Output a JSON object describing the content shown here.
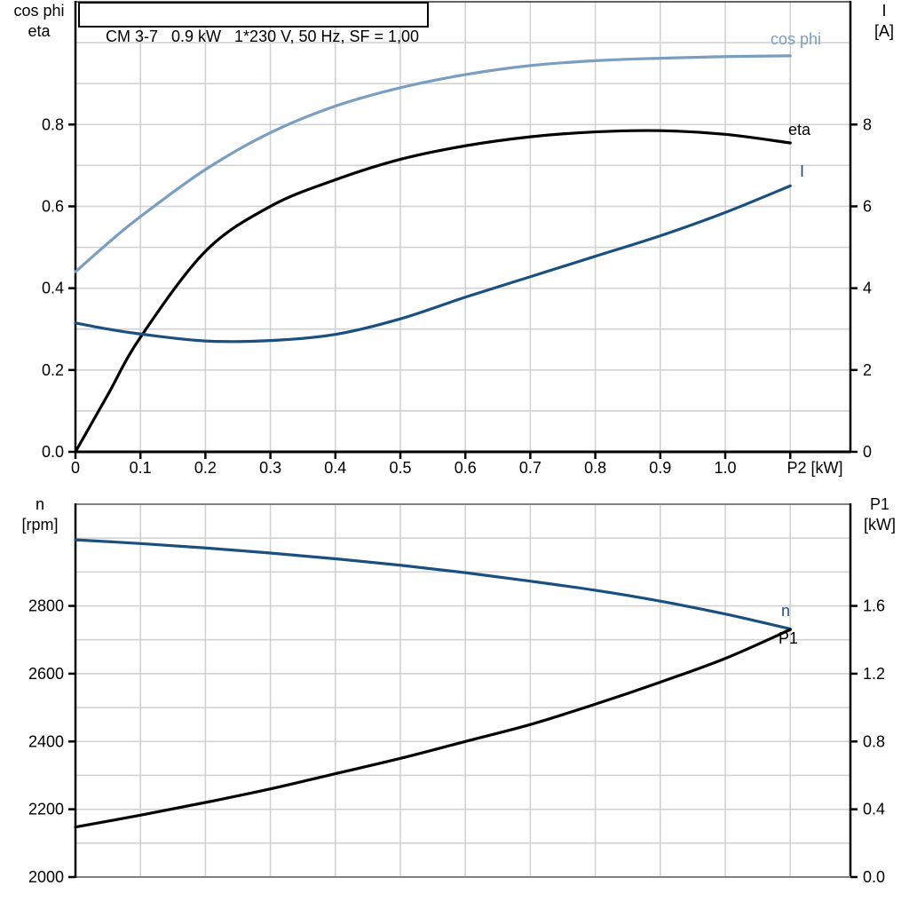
{
  "title_box": "CM 3-7   0.9 kW   1*230 V, 50 Hz, SF = 1,00",
  "axis_corner_labels": {
    "top_left": [
      "cos phi",
      "eta"
    ],
    "top_right": [
      "I",
      "[A]"
    ],
    "bottom_left": [
      "n",
      "[rpm]"
    ],
    "bottom_right": [
      "P1",
      "[kW]"
    ]
  },
  "colors": {
    "cos_phi_blue": "#7A9EC2",
    "dark_blue": "#1A5080",
    "black": "#000000",
    "grid": "#D2D2D2",
    "frame_gray": "#808080"
  },
  "chart_data": [
    {
      "type": "line",
      "title": "CM 3-7   0.9 kW   1*230 V, 50 Hz, SF = 1,00",
      "xlabel": "P2 [kW]",
      "xlabel_v": 1.138,
      "ylabel_left": "cos phi / eta",
      "ylabel_right": "I [A]",
      "xlim": [
        0,
        1.1926
      ],
      "ylim_left": [
        0,
        1.1
      ],
      "ylim_right": [
        0,
        11.0
      ],
      "grid": true,
      "legend_position": "inline-curve-labels",
      "grid_x": [
        0.1,
        0.2,
        0.3,
        0.4,
        0.5,
        0.6,
        0.7,
        0.8,
        0.9,
        1.0,
        1.1
      ],
      "grid_y_left": [
        0.1,
        0.2,
        0.3,
        0.4,
        0.5,
        0.6,
        0.7,
        0.8,
        0.9,
        1.0
      ],
      "xticks": [
        {
          "v": 0,
          "l": "0"
        },
        {
          "v": 0.1,
          "l": "0.1"
        },
        {
          "v": 0.2,
          "l": "0.2"
        },
        {
          "v": 0.3,
          "l": "0.3"
        },
        {
          "v": 0.4,
          "l": "0.4"
        },
        {
          "v": 0.5,
          "l": "0.5"
        },
        {
          "v": 0.6,
          "l": "0.6"
        },
        {
          "v": 0.7,
          "l": "0.7"
        },
        {
          "v": 0.8,
          "l": "0.8"
        },
        {
          "v": 0.9,
          "l": "0.9"
        },
        {
          "v": 1.0,
          "l": "1.0"
        },
        {
          "v": 1.1,
          "l": ""
        }
      ],
      "yticks_left": [
        {
          "v": 0,
          "l": "0.0"
        },
        {
          "v": 0.2,
          "l": "0.2"
        },
        {
          "v": 0.4,
          "l": "0.4"
        },
        {
          "v": 0.6,
          "l": "0.6"
        },
        {
          "v": 0.8,
          "l": "0.8"
        }
      ],
      "yticks_right": [
        {
          "v": 0,
          "l": "0"
        },
        {
          "v": 2,
          "l": "2"
        },
        {
          "v": 4,
          "l": "4"
        },
        {
          "v": 6,
          "l": "6"
        },
        {
          "v": 8,
          "l": "8"
        }
      ],
      "x": [
        0,
        0.05,
        0.1,
        0.2,
        0.3,
        0.4,
        0.5,
        0.6,
        0.7,
        0.8,
        0.9,
        1.0,
        1.1
      ],
      "series": [
        {
          "id": "cos-phi",
          "name": "cos phi",
          "axis": "left",
          "color": "#7A9EC2",
          "values": [
            0.44,
            0.51,
            0.575,
            0.69,
            0.78,
            0.845,
            0.89,
            0.922,
            0.944,
            0.956,
            0.962,
            0.966,
            0.968
          ]
        },
        {
          "id": "eta",
          "name": "eta",
          "axis": "left",
          "color": "#000000",
          "values": [
            0,
            0.14,
            0.28,
            0.49,
            0.6,
            0.665,
            0.715,
            0.748,
            0.77,
            0.782,
            0.785,
            0.776,
            0.755
          ]
        },
        {
          "id": "current",
          "name": "I",
          "axis": "right",
          "color": "#1A5080",
          "values": [
            3.15,
            3.0,
            2.88,
            2.71,
            2.72,
            2.87,
            3.25,
            3.78,
            4.28,
            4.78,
            5.28,
            5.85,
            6.5
          ]
        }
      ]
    },
    {
      "type": "line",
      "xlabel": "",
      "ylabel_left": "n [rpm]",
      "ylabel_right": "P1 [kW]",
      "xlim": [
        0,
        1.1926
      ],
      "ylim_left": [
        2000,
        3100
      ],
      "ylim_right": [
        0,
        2.2
      ],
      "grid": true,
      "legend_position": "inline-curve-labels",
      "grid_x": [
        0.1,
        0.2,
        0.3,
        0.4,
        0.5,
        0.6,
        0.7,
        0.8,
        0.9,
        1.0,
        1.1
      ],
      "grid_y_left": [
        2100,
        2200,
        2300,
        2400,
        2500,
        2600,
        2700,
        2800,
        2900,
        3000
      ],
      "xticks": [],
      "yticks_left": [
        {
          "v": 2000,
          "l": "2000"
        },
        {
          "v": 2200,
          "l": "2200"
        },
        {
          "v": 2400,
          "l": "2400"
        },
        {
          "v": 2600,
          "l": "2600"
        },
        {
          "v": 2800,
          "l": "2800"
        }
      ],
      "yticks_right": [
        {
          "v": 0,
          "l": "0.0"
        },
        {
          "v": 0.4,
          "l": "0.4"
        },
        {
          "v": 0.8,
          "l": "0.8"
        },
        {
          "v": 1.2,
          "l": "1.2"
        },
        {
          "v": 1.6,
          "l": "1.6"
        }
      ],
      "x": [
        0,
        0.1,
        0.2,
        0.3,
        0.4,
        0.5,
        0.6,
        0.7,
        0.8,
        0.9,
        1.0,
        1.1
      ],
      "series": [
        {
          "id": "speed",
          "name": "n",
          "axis": "left",
          "color": "#1A5080",
          "values": [
            2995,
            2984,
            2971,
            2956,
            2939,
            2920,
            2898,
            2873,
            2846,
            2814,
            2776,
            2732
          ]
        },
        {
          "id": "input-power",
          "name": "P1",
          "axis": "right",
          "color": "#000000",
          "values": [
            0.295,
            0.365,
            0.44,
            0.52,
            0.61,
            0.7,
            0.8,
            0.9,
            1.02,
            1.15,
            1.29,
            1.46
          ]
        }
      ]
    }
  ]
}
